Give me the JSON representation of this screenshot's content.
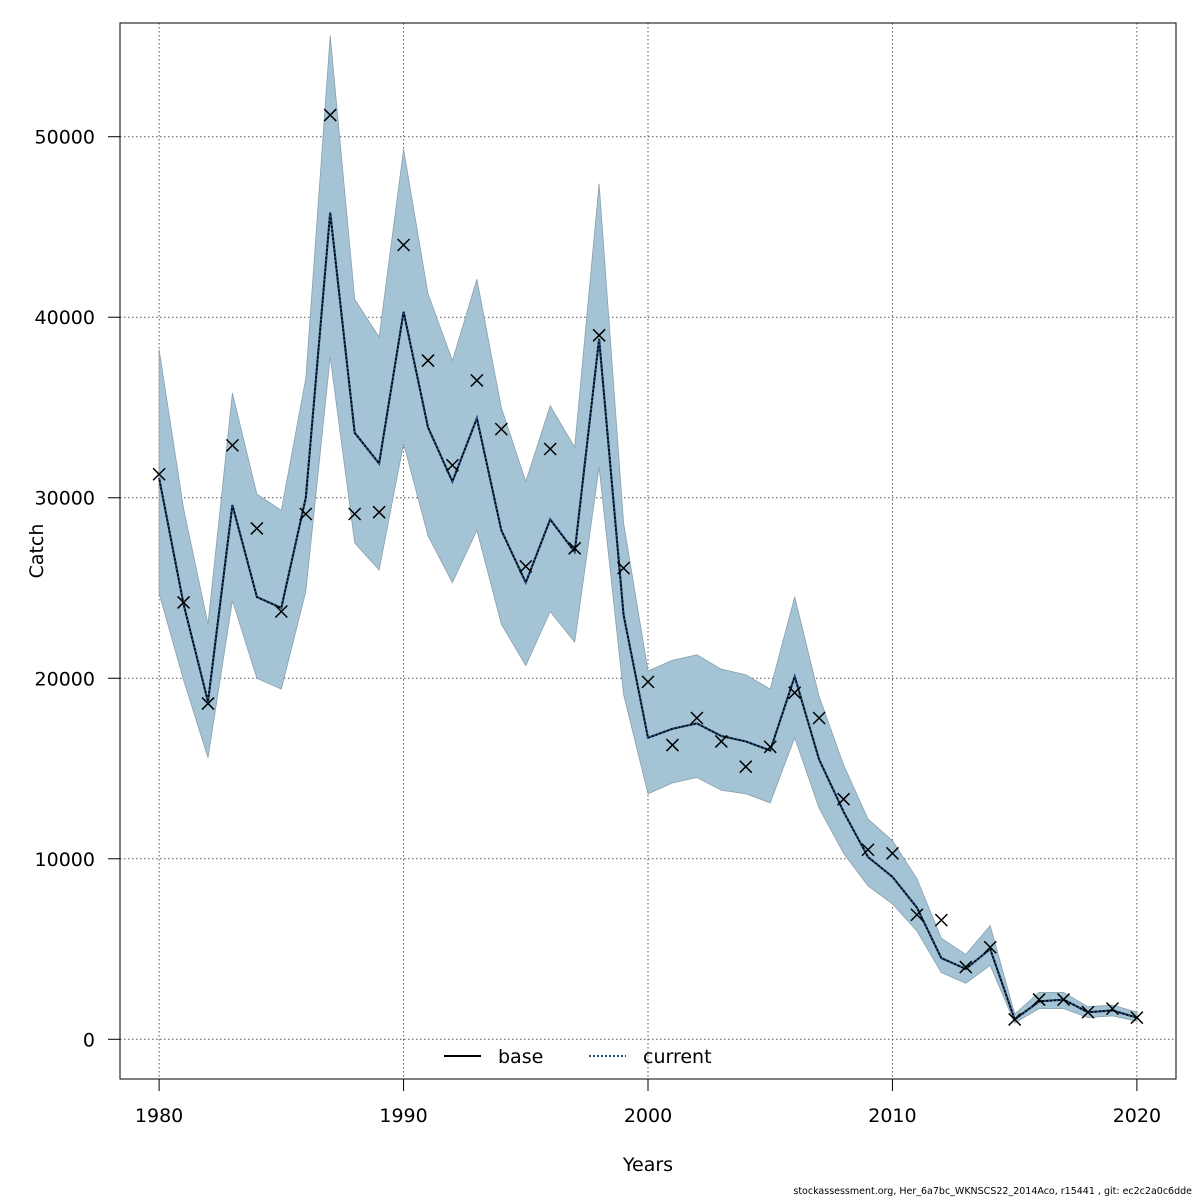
{
  "chart_data": {
    "type": "line",
    "xlabel": "Years",
    "ylabel": "Catch",
    "xlim": [
      1978.4,
      2021.6
    ],
    "ylim": [
      -2200,
      56300
    ],
    "xticks": [
      1980,
      1990,
      2000,
      2010,
      2020
    ],
    "xtick_labels": [
      "1980",
      "1990",
      "2000",
      "2010",
      "2020"
    ],
    "yticks": [
      0,
      10000,
      20000,
      30000,
      40000,
      50000
    ],
    "ytick_labels": [
      "0",
      "10000",
      "20000",
      "30000",
      "40000",
      "50000"
    ],
    "grid": true,
    "legend_position": "bottom-center",
    "x": [
      1980,
      1981,
      1982,
      1983,
      1984,
      1985,
      1986,
      1987,
      1988,
      1989,
      1990,
      1991,
      1992,
      1993,
      1994,
      1995,
      1996,
      1997,
      1998,
      1999,
      2000,
      2001,
      2002,
      2003,
      2004,
      2005,
      2006,
      2007,
      2008,
      2009,
      2010,
      2011,
      2012,
      2013,
      2014,
      2015,
      2016,
      2017,
      2018,
      2019,
      2020
    ],
    "series": [
      {
        "name": "base",
        "line_style": "solid",
        "color": "#000000",
        "values": [
          31100,
          24100,
          18700,
          29600,
          24500,
          23900,
          30000,
          45800,
          33600,
          31900,
          40300,
          33900,
          30900,
          34400,
          28200,
          25300,
          28800,
          27000,
          38800,
          23500,
          16700,
          17200,
          17500,
          16800,
          16500,
          16000,
          20100,
          15500,
          12600,
          10100,
          9000,
          7300,
          4500,
          3900,
          5000,
          1100,
          2100,
          2200,
          1500,
          1600,
          1200
        ]
      },
      {
        "name": "current",
        "line_style": "dotted",
        "color": "#1f4e8c",
        "values": [
          31100,
          24100,
          18700,
          29600,
          24500,
          23900,
          30000,
          45800,
          33600,
          31900,
          40300,
          33900,
          30900,
          34400,
          28200,
          25300,
          28800,
          27000,
          38800,
          23500,
          16700,
          17200,
          17500,
          16800,
          16500,
          16000,
          20100,
          15500,
          12600,
          10100,
          9000,
          7300,
          4500,
          3900,
          5000,
          1100,
          2100,
          2200,
          1500,
          1600,
          1200
        ]
      }
    ],
    "band": {
      "color": "#a4c4d5",
      "upper": [
        38200,
        29400,
        23000,
        35800,
        30200,
        29300,
        36600,
        55600,
        41000,
        38900,
        49300,
        41300,
        37600,
        42100,
        35000,
        30900,
        35100,
        32800,
        47400,
        28600,
        20400,
        21000,
        21300,
        20500,
        20200,
        19400,
        24500,
        19000,
        15200,
        12200,
        11000,
        8900,
        5600,
        4700,
        6300,
        1400,
        2600,
        2600,
        1800,
        1900,
        1500
      ],
      "lower": [
        24700,
        19900,
        15600,
        24300,
        20000,
        19400,
        24800,
        37800,
        27500,
        26000,
        33000,
        27900,
        25300,
        28200,
        23000,
        20700,
        23700,
        22000,
        31700,
        19100,
        13600,
        14200,
        14500,
        13800,
        13600,
        13100,
        16700,
        12800,
        10300,
        8500,
        7500,
        6000,
        3700,
        3100,
        4100,
        900,
        1700,
        1700,
        1200,
        1300,
        1000
      ]
    },
    "observed": {
      "marker": "x",
      "color": "#000000",
      "values": [
        31300,
        24200,
        18600,
        32900,
        28300,
        23700,
        29100,
        51200,
        29100,
        29200,
        44000,
        37600,
        31800,
        36500,
        33800,
        26200,
        32700,
        27200,
        39000,
        26100,
        19800,
        16300,
        17800,
        16500,
        15100,
        16200,
        19200,
        17800,
        13300,
        10500,
        10300,
        6900,
        6600,
        4000,
        5100,
        1100,
        2200,
        2200,
        1500,
        1700,
        1200
      ]
    }
  },
  "footer_text": "stockassessment.org, Her_6a7bc_WKNSCS22_2014Aco, r15441 , git: ec2c2a0c6dde"
}
